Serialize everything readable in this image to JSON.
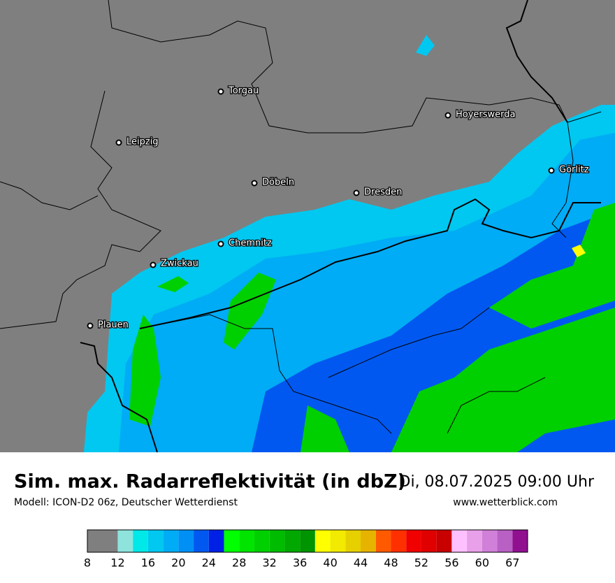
{
  "map": {
    "cities": [
      "Torgau",
      "Hoyerswerda",
      "Leipzig",
      "Görlitz",
      "Döbeln",
      "Dresden",
      "Chemnitz",
      "Zwickau",
      "Plauen"
    ]
  },
  "footer": {
    "title": "Sim. max. Radarreflektivität (in dbZ)",
    "date": "Di, 08.07.2025 09:00 Uhr",
    "source": "Modell: ICON-D2 06z, Deutscher Wetterdienst",
    "website": "www.wetterblick.com"
  },
  "colorbar": {
    "colors": [
      "#7f7f7f",
      "#8ee3dc",
      "#00e8e8",
      "#00c8f0",
      "#00acf5",
      "#0090f5",
      "#0058f0",
      "#0020e6",
      "#00ff00",
      "#00e400",
      "#00d000",
      "#00bc00",
      "#00a800",
      "#009400",
      "#ffff00",
      "#f2ea00",
      "#e6d000",
      "#e6b400",
      "#ff5a00",
      "#ff3000",
      "#f00000",
      "#e00000",
      "#c80000",
      "#ffc0ff",
      "#e8a0e8",
      "#d080d8",
      "#b860c4",
      "#901090"
    ],
    "ticks": [
      8,
      12,
      16,
      20,
      24,
      28,
      32,
      36,
      40,
      44,
      48,
      52,
      56,
      60,
      67
    ]
  }
}
